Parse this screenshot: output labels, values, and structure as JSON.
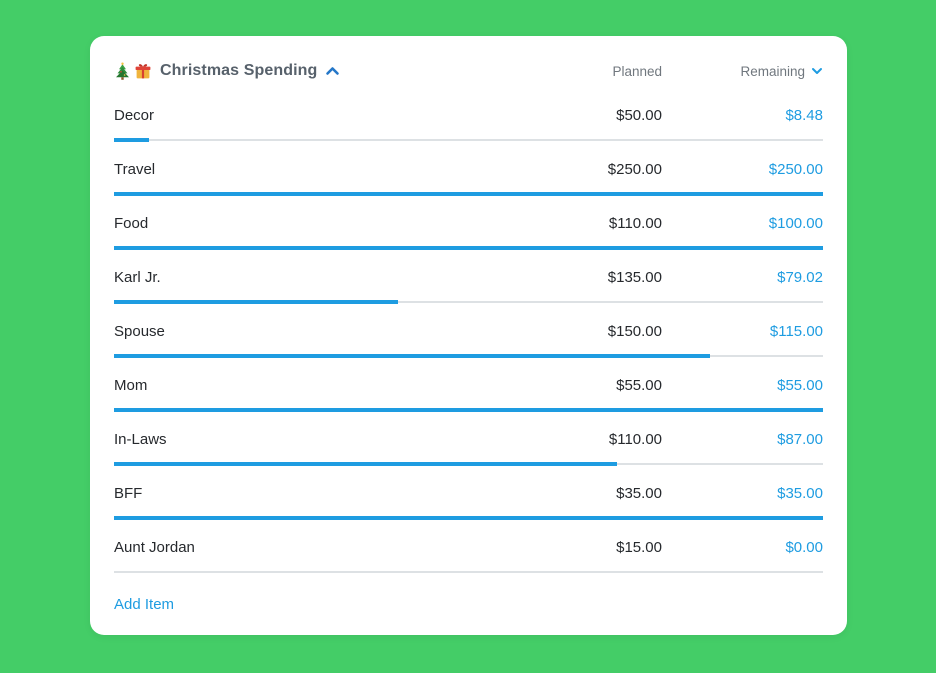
{
  "colors": {
    "background_green": "#44CD67",
    "card_white": "#FFFFFF",
    "accent_blue": "#1E9CE1",
    "collapse_chevron_blue": "#2577C8",
    "title_gray": "#57616B",
    "text_dark": "#26292D",
    "column_header_gray": "#70777E",
    "track_gray": "#DDE1E4"
  },
  "header": {
    "icons": [
      "christmas-tree-icon",
      "gift-icon"
    ],
    "title": "Christmas Spending",
    "collapse_icon": "chevron-up",
    "planned_label": "Planned",
    "remaining_label": "Remaining",
    "remaining_sort_icon": "chevron-down"
  },
  "items": [
    {
      "name": "Decor",
      "planned": "$50.00",
      "remaining": "$8.48",
      "progress_percent": 5
    },
    {
      "name": "Travel",
      "planned": "$250.00",
      "remaining": "$250.00",
      "progress_percent": 100
    },
    {
      "name": "Food",
      "planned": "$110.00",
      "remaining": "$100.00",
      "progress_percent": 100
    },
    {
      "name": "Karl Jr.",
      "planned": "$135.00",
      "remaining": "$79.02",
      "progress_percent": 40
    },
    {
      "name": "Spouse",
      "planned": "$150.00",
      "remaining": "$115.00",
      "progress_percent": 84
    },
    {
      "name": "Mom",
      "planned": "$55.00",
      "remaining": "$55.00",
      "progress_percent": 100
    },
    {
      "name": "In-Laws",
      "planned": "$110.00",
      "remaining": "$87.00",
      "progress_percent": 71
    },
    {
      "name": "BFF",
      "planned": "$35.00",
      "remaining": "$35.00",
      "progress_percent": 100
    },
    {
      "name": "Aunt Jordan",
      "planned": "$15.00",
      "remaining": "$0.00",
      "progress_percent": 0
    }
  ],
  "footer": {
    "add_item_label": "Add Item"
  }
}
